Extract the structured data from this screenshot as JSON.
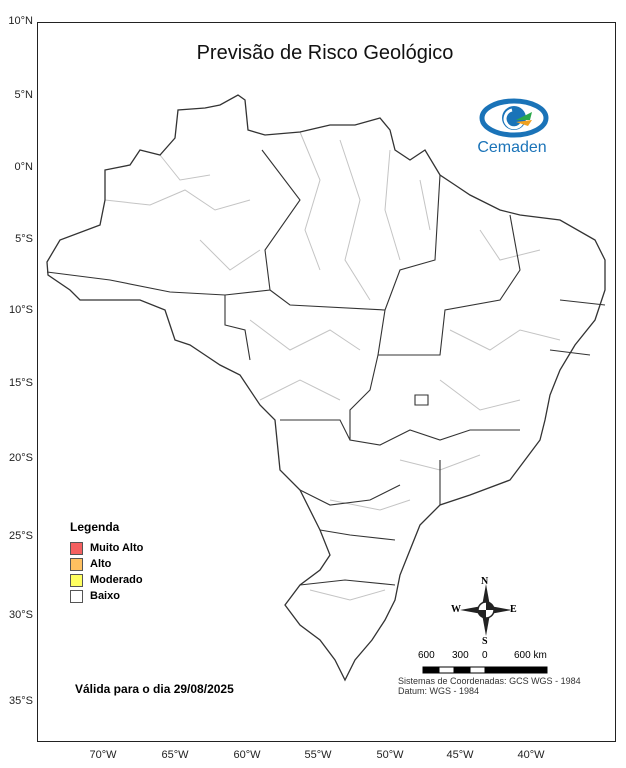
{
  "title": "Previsão de Risco Geológico",
  "logo": {
    "text": "Cemaden",
    "colors": [
      "#1a73b8",
      "#2aa84a",
      "#f0a020"
    ]
  },
  "lat_ticks": [
    "10°N",
    "5°N",
    "0°N",
    "5°S",
    "10°S",
    "15°S",
    "20°S",
    "25°S",
    "30°S",
    "35°S"
  ],
  "lon_ticks": [
    "70°W",
    "65°W",
    "60°W",
    "55°W",
    "50°W",
    "45°W",
    "40°W"
  ],
  "legend": {
    "title": "Legenda",
    "items": [
      {
        "label": "Muito Alto",
        "color": "#f46060"
      },
      {
        "label": "Alto",
        "color": "#ffc060"
      },
      {
        "label": "Moderado",
        "color": "#ffff60"
      },
      {
        "label": "Baixo",
        "color": "#ffffff"
      }
    ]
  },
  "valid_text": "Válida para o dia 29/08/2025",
  "north_arrow": {
    "n": "N",
    "s": "S",
    "e": "E",
    "w": "W"
  },
  "scale": {
    "labels": [
      "600",
      "300",
      "0",
      "600 km"
    ]
  },
  "coordinate_system": "Sistemas de Coordenadas: GCS WGS - 1984",
  "datum": "Datum: WGS - 1984",
  "risk_shown": "Baixo"
}
